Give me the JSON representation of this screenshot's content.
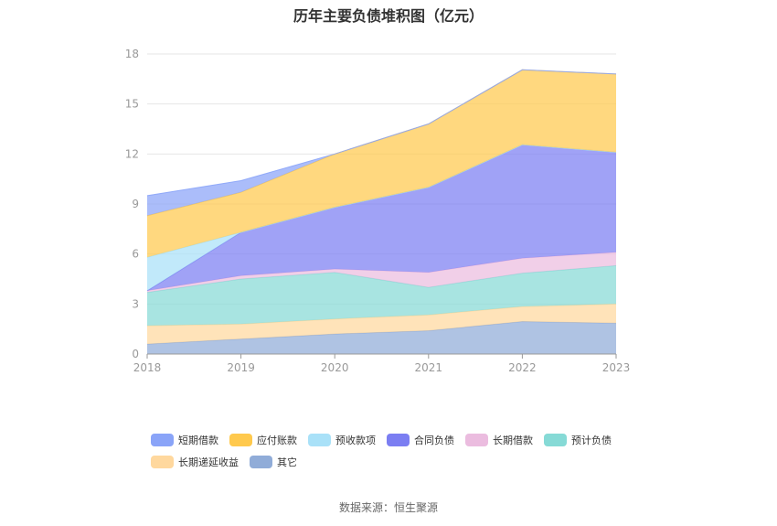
{
  "colors": {
    "短期借款": "#8aa4f8",
    "应付账款": "#ffc94d",
    "预收款项": "#a9e1f8",
    "合同负债": "#7b7ef2",
    "长期借款": "#ebbcdf",
    "预计负债": "#86dad6",
    "长期递延收益": "#ffd89e",
    "其它": "#90acd8"
  },
  "source_note": "数据来源：恒生聚源",
  "chart_data": {
    "type": "area",
    "stacked": true,
    "title": "历年主要负债堆积图（亿元）",
    "xlabel": "",
    "ylabel": "",
    "categories": [
      "2018",
      "2019",
      "2020",
      "2021",
      "2022",
      "2023"
    ],
    "ylim": [
      0,
      18
    ],
    "yticks": [
      0,
      3,
      6,
      9,
      12,
      15,
      18
    ],
    "grid": true,
    "legend_position": "bottom",
    "series": [
      {
        "name": "其它",
        "values": [
          0.6,
          0.9,
          1.2,
          1.4,
          1.95,
          1.85
        ]
      },
      {
        "name": "长期递延收益",
        "values": [
          1.1,
          0.9,
          0.9,
          0.95,
          0.9,
          1.15
        ]
      },
      {
        "name": "预计负债",
        "values": [
          2.0,
          2.7,
          2.8,
          1.65,
          2.0,
          2.3
        ]
      },
      {
        "name": "长期借款",
        "values": [
          0.1,
          0.2,
          0.2,
          0.9,
          0.9,
          0.8
        ]
      },
      {
        "name": "合同负债",
        "values": [
          0.0,
          2.6,
          3.7,
          5.1,
          6.8,
          6.0
        ]
      },
      {
        "name": "预收款项",
        "values": [
          2.0,
          0.0,
          0.0,
          0.0,
          0.0,
          0.0
        ]
      },
      {
        "name": "应付账款",
        "values": [
          2.5,
          2.4,
          3.2,
          3.8,
          4.5,
          4.7
        ]
      },
      {
        "name": "短期借款",
        "values": [
          1.2,
          0.7,
          0.0,
          0.0,
          0.0,
          0.0
        ]
      }
    ],
    "legend_order": [
      "短期借款",
      "应付账款",
      "预收款项",
      "合同负债",
      "长期借款",
      "预计负债",
      "长期递延收益",
      "其它"
    ]
  }
}
